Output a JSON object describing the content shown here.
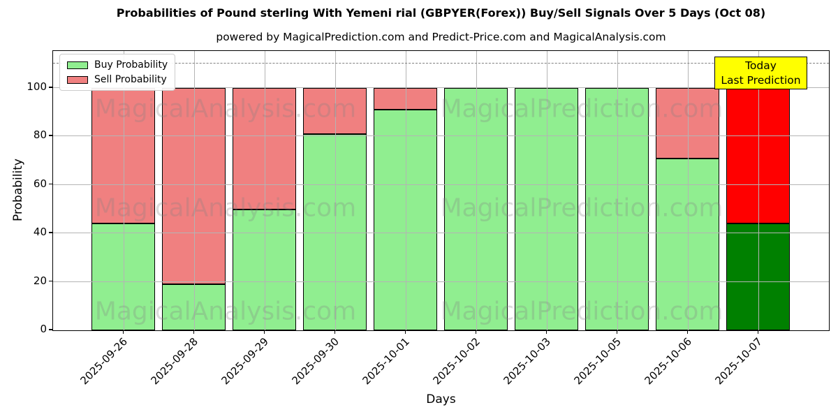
{
  "title": "Probabilities of Pound sterling With Yemeni rial (GBPYER(Forex)) Buy/Sell Signals Over 5 Days (Oct 08)",
  "subtitle": "powered by MagicalPrediction.com and Predict-Price.com and MagicalAnalysis.com",
  "watermark": {
    "left_text": "MagicalAnalysis.com",
    "right_text": "MagicalPrediction.com"
  },
  "annotation": {
    "line1": "Today",
    "line2": "Last Prediction",
    "bg_color": "#ffff00",
    "border_color": "#000000"
  },
  "legend": {
    "items": [
      {
        "label": "Buy Probability",
        "color": "#90ee90"
      },
      {
        "label": "Sell Probability",
        "color": "#f08080"
      }
    ]
  },
  "chart_data": {
    "type": "bar",
    "stacked": true,
    "title": "Probabilities of Pound sterling With Yemeni rial (GBPYER(Forex)) Buy/Sell Signals Over 5 Days (Oct 08)",
    "xlabel": "Days",
    "ylabel": "Probability",
    "categories": [
      "2025-09-26",
      "2025-09-28",
      "2025-09-29",
      "2025-09-30",
      "2025-10-01",
      "2025-10-02",
      "2025-10-03",
      "2025-10-05",
      "2025-10-06",
      "2025-10-07"
    ],
    "series": [
      {
        "name": "Buy Probability",
        "color": "#90ee90",
        "values": [
          44,
          19,
          50,
          81,
          91,
          100,
          100,
          100,
          71,
          44
        ]
      },
      {
        "name": "Sell Probability",
        "color": "#f08080",
        "values": [
          56,
          81,
          50,
          19,
          9,
          0,
          0,
          0,
          29,
          56
        ]
      }
    ],
    "highlight_last_bar": {
      "buy_color": "#008000",
      "sell_color": "#ff0000"
    },
    "bar_edge_color": "#000000",
    "ylim": [
      0,
      115
    ],
    "yticks": [
      0,
      20,
      40,
      60,
      80,
      100
    ],
    "dashed_hline": 110,
    "grid": true,
    "legend_position": "upper left"
  }
}
